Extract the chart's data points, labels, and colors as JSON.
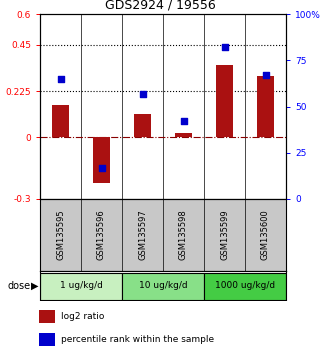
{
  "title": "GDS2924 / 19556",
  "samples": [
    "GSM135595",
    "GSM135596",
    "GSM135597",
    "GSM135598",
    "GSM135599",
    "GSM135600"
  ],
  "log2_ratio": [
    0.155,
    -0.22,
    0.115,
    0.02,
    0.35,
    0.3
  ],
  "percentile": [
    65,
    17,
    57,
    42,
    82,
    67
  ],
  "dose_groups": [
    {
      "label": "1 ug/kg/d",
      "start": 0,
      "end": 2,
      "color": "#c8f0c0"
    },
    {
      "label": "10 ug/kg/d",
      "start": 2,
      "end": 4,
      "color": "#88e088"
    },
    {
      "label": "1000 ug/kg/d",
      "start": 4,
      "end": 6,
      "color": "#44cc44"
    }
  ],
  "dose_label": "dose",
  "bar_color": "#aa1111",
  "square_color": "#0000cc",
  "ylim_left": [
    -0.3,
    0.6
  ],
  "ylim_right": [
    0,
    100
  ],
  "yticks_left": [
    -0.3,
    0.0,
    0.225,
    0.45,
    0.6
  ],
  "yticks_left_labels": [
    "-0.3",
    "0",
    "0.225",
    "0.45",
    "0.6"
  ],
  "yticks_right": [
    0,
    25,
    50,
    75,
    100
  ],
  "yticks_right_labels": [
    "0",
    "25",
    "50",
    "75",
    "100%"
  ],
  "hlines": [
    0.225,
    0.45
  ],
  "zero_line": 0.0,
  "bg_sample": "#c8c8c8",
  "legend_red": "log2 ratio",
  "legend_blue": "percentile rank within the sample"
}
